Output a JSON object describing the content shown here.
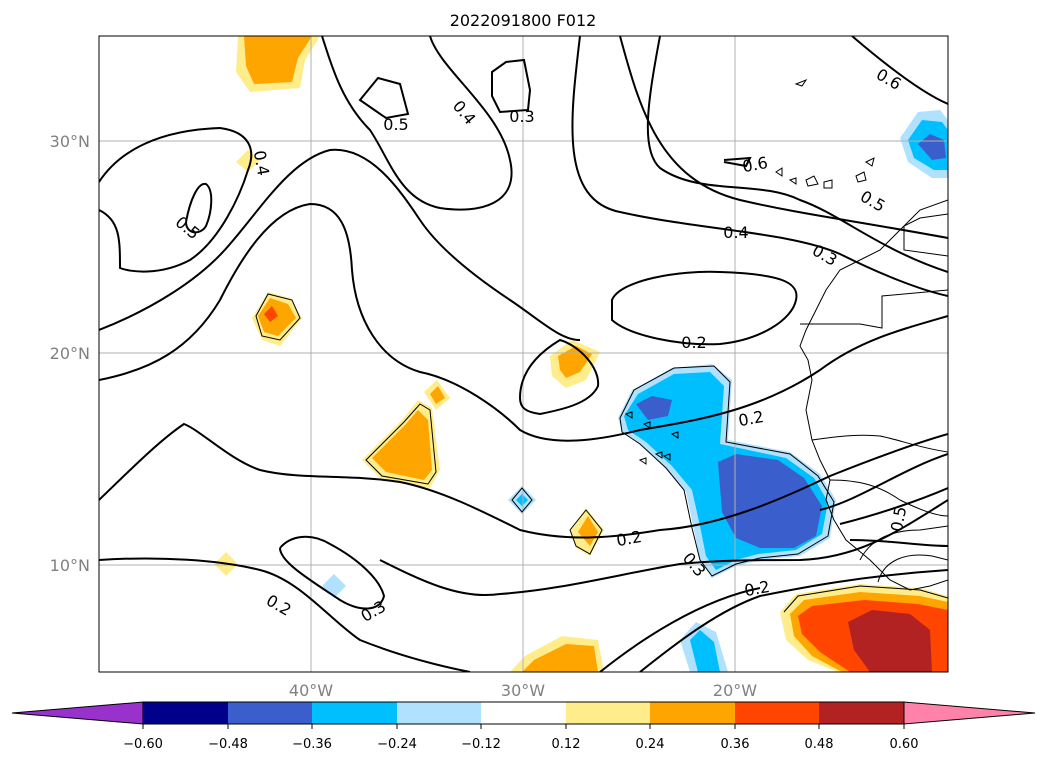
{
  "title": "2022091800 F012",
  "map": {
    "lat_labels": [
      "30°N",
      "20°N",
      "10°N"
    ],
    "lon_labels": [
      "40°W",
      "30°W",
      "20°W"
    ],
    "contour_labels": [
      "0.6",
      "0.6",
      "0.5",
      "0.4",
      "0.3",
      "0.5",
      "0.4",
      "0.5",
      "0.4",
      "0.3",
      "0.2",
      "0.2",
      "0.2",
      "0.2",
      "0.3",
      "0.2",
      "0.3",
      "0.5"
    ]
  },
  "colorbar": {
    "tick_labels": [
      "−0.60",
      "−0.48",
      "−0.36",
      "−0.24",
      "−0.12",
      "0.12",
      "0.24",
      "0.36",
      "0.48",
      "0.60"
    ],
    "colors": [
      "#9932cc",
      "#00008b",
      "#3a5fcd",
      "#00bfff",
      "#b0e2ff",
      "#ffffff",
      "#ffec8b",
      "#ffa500",
      "#ff4500",
      "#b22222",
      "#ff82ab"
    ]
  }
}
